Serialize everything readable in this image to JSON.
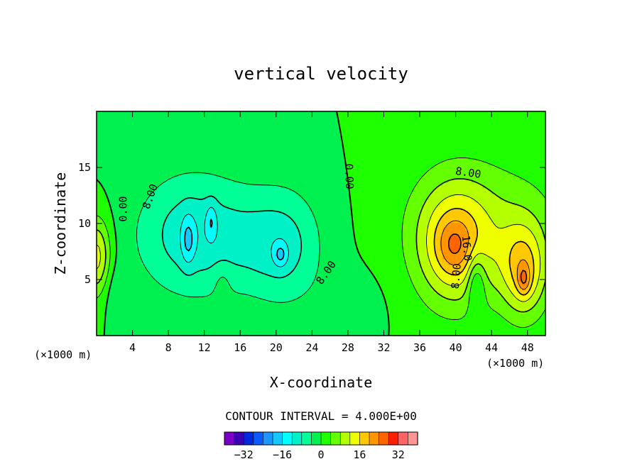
{
  "chart_data": {
    "type": "heatmap",
    "subtype": "filled-contour",
    "title": "vertical velocity",
    "xlabel": "X-coordinate",
    "ylabel": "Z-coordinate",
    "x_unit_left": "(×1000 m)",
    "x_unit_right": "(×1000 m)",
    "xlim": [
      0,
      50
    ],
    "ylim": [
      0,
      20
    ],
    "x_ticks": [
      4,
      8,
      12,
      16,
      20,
      24,
      28,
      32,
      36,
      40,
      44,
      48
    ],
    "y_ticks": [
      5,
      10,
      15
    ],
    "contour_interval_text": "CONTOUR INTERVAL = 4.000E+00",
    "contour_interval": 4,
    "contour_labels": [
      {
        "text": "0.00",
        "x": 3.0,
        "y": 11.3,
        "rot": -90
      },
      {
        "text": "8.00",
        "x": 6.0,
        "y": 12.4,
        "rot": -70
      },
      {
        "text": "0.00",
        "x": 28.1,
        "y": 14.2,
        "rot": 88
      },
      {
        "text": "8.00",
        "x": 41.4,
        "y": 14.5,
        "rot": 8
      },
      {
        "text": "16.0",
        "x": 41.2,
        "y": 7.8,
        "rot": 85
      },
      {
        "text": "8.00",
        "x": 40.1,
        "y": 5.3,
        "rot": -85
      },
      {
        "text": "8.00",
        "x": 25.6,
        "y": 5.6,
        "rot": -55
      }
    ],
    "features": [
      {
        "kind": "downdraft",
        "x": 11.5,
        "z": 9.0,
        "peak": -18
      },
      {
        "kind": "downdraft",
        "x": 21.0,
        "z": 7.0,
        "peak": -14
      },
      {
        "kind": "updraft",
        "x": 47.6,
        "z": 5.3,
        "peak": 28
      },
      {
        "kind": "updraft",
        "x": 39.5,
        "z": 8.0,
        "peak": 22
      },
      {
        "kind": "updraft",
        "x": 0.2,
        "z": 7.0,
        "peak": 14
      }
    ],
    "colorbar": {
      "levels": 20,
      "vmin": -40,
      "vmax": 40,
      "tick_labels": [
        "−32",
        "−16",
        "0",
        "16",
        "32"
      ],
      "tick_values": [
        -32,
        -16,
        0,
        16,
        32
      ],
      "colors": [
        "#7a00c8",
        "#3c00b4",
        "#0028dc",
        "#0a5aff",
        "#1e96ff",
        "#14c8ff",
        "#00ffff",
        "#00f0c8",
        "#00ff96",
        "#00f050",
        "#1eff00",
        "#64ff00",
        "#b4ff00",
        "#f0ff00",
        "#ffc800",
        "#ff9600",
        "#ff6400",
        "#ff1e00",
        "#ff6464",
        "#ff9696"
      ]
    }
  }
}
